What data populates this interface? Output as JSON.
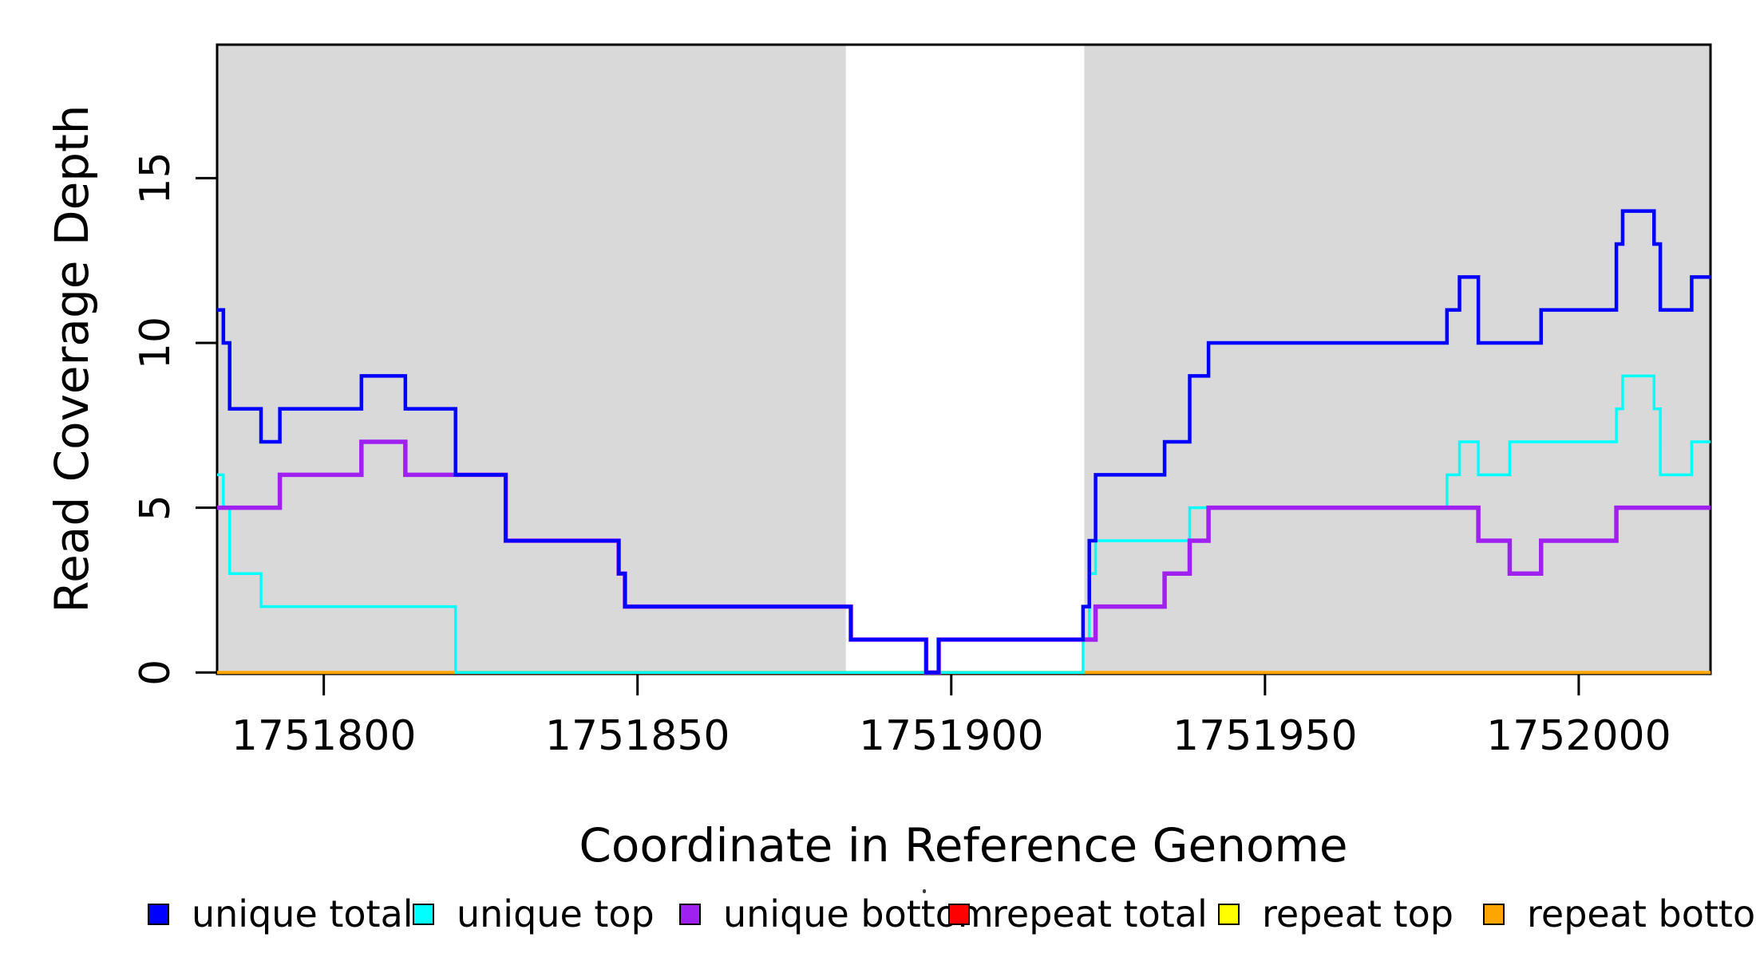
{
  "chart_data": {
    "type": "line",
    "subtype": "step",
    "title": "",
    "xlabel": "Coordinate in Reference Genome",
    "ylabel": "Read Coverage Depth",
    "xlim": [
      1751783,
      1752021
    ],
    "ylim": [
      0,
      19
    ],
    "x_ticks": [
      1751800,
      1751850,
      1751900,
      1751950,
      1752000
    ],
    "y_ticks": [
      0,
      5,
      10,
      15
    ],
    "grid": false,
    "legend_position": "bottom",
    "shade_color": "#d9d9d9",
    "shaded_regions": [
      [
        1751783,
        1751883.2
      ],
      [
        1751921.2,
        1752021
      ]
    ],
    "draw_order": [
      "repeat total",
      "repeat top",
      "repeat bottom",
      "unique top",
      "unique bottom",
      "unique total"
    ],
    "series": [
      {
        "name": "unique total",
        "color": "#0000ff",
        "line_width": 4.5,
        "steps": [
          [
            1751783,
            11
          ],
          [
            1751784,
            10
          ],
          [
            1751785,
            8
          ],
          [
            1751790,
            7
          ],
          [
            1751793,
            8
          ],
          [
            1751806,
            9
          ],
          [
            1751813,
            8
          ],
          [
            1751821,
            6
          ],
          [
            1751829,
            4
          ],
          [
            1751847,
            3
          ],
          [
            1751848,
            2
          ],
          [
            1751884,
            1
          ],
          [
            1751896,
            0
          ],
          [
            1751898,
            1
          ],
          [
            1751921,
            2
          ],
          [
            1751922,
            4
          ],
          [
            1751923,
            6
          ],
          [
            1751934,
            7
          ],
          [
            1751938,
            9
          ],
          [
            1751941,
            10
          ],
          [
            1751979,
            11
          ],
          [
            1751981,
            12
          ],
          [
            1751984,
            10
          ],
          [
            1751994,
            11
          ],
          [
            1752006,
            13
          ],
          [
            1752007,
            14
          ],
          [
            1752012,
            13
          ],
          [
            1752013,
            11
          ],
          [
            1752018,
            12
          ]
        ]
      },
      {
        "name": "unique top",
        "color": "#00ffff",
        "line_width": 3.5,
        "steps": [
          [
            1751783,
            6
          ],
          [
            1751784,
            5
          ],
          [
            1751785,
            3
          ],
          [
            1751790,
            2
          ],
          [
            1751821,
            0
          ],
          [
            1751921,
            1
          ],
          [
            1751922,
            3
          ],
          [
            1751923,
            4
          ],
          [
            1751938,
            5
          ],
          [
            1751979,
            6
          ],
          [
            1751981,
            7
          ],
          [
            1751984,
            6
          ],
          [
            1751989,
            7
          ],
          [
            1752006,
            8
          ],
          [
            1752007,
            9
          ],
          [
            1752012,
            8
          ],
          [
            1752013,
            6
          ],
          [
            1752018,
            7
          ]
        ]
      },
      {
        "name": "unique bottom",
        "color": "#a020f0",
        "line_width": 5.5,
        "steps": [
          [
            1751783,
            5
          ],
          [
            1751793,
            6
          ],
          [
            1751806,
            7
          ],
          [
            1751813,
            6
          ],
          [
            1751829,
            4
          ],
          [
            1751847,
            3
          ],
          [
            1751848,
            2
          ],
          [
            1751884,
            1
          ],
          [
            1751896,
            0
          ],
          [
            1751898,
            1
          ],
          [
            1751923,
            2
          ],
          [
            1751934,
            3
          ],
          [
            1751938,
            4
          ],
          [
            1751941,
            5
          ],
          [
            1751984,
            4
          ],
          [
            1751989,
            3
          ],
          [
            1751994,
            4
          ],
          [
            1752006,
            5
          ]
        ]
      },
      {
        "name": "repeat total",
        "color": "#ff0000",
        "line_width": 3.5,
        "steps": [
          [
            1751783,
            0
          ]
        ]
      },
      {
        "name": "repeat top",
        "color": "#ffff00",
        "line_width": 3.5,
        "steps": [
          [
            1751783,
            0
          ]
        ]
      },
      {
        "name": "repeat bottom",
        "color": "#ffa500",
        "line_width": 4,
        "steps": [
          [
            1751783,
            0
          ]
        ]
      }
    ]
  },
  "legend": {
    "items": [
      {
        "label": "unique total",
        "color": "#0000ff"
      },
      {
        "label": "unique top",
        "color": "#00ffff"
      },
      {
        "label": "unique bottom",
        "color": "#a020f0"
      },
      {
        "label": "repeat total",
        "color": "#ff0000"
      },
      {
        "label": "repeat top",
        "color": "#ffff00"
      },
      {
        "label": "repeat bottom",
        "color": "#ffa500"
      }
    ]
  }
}
